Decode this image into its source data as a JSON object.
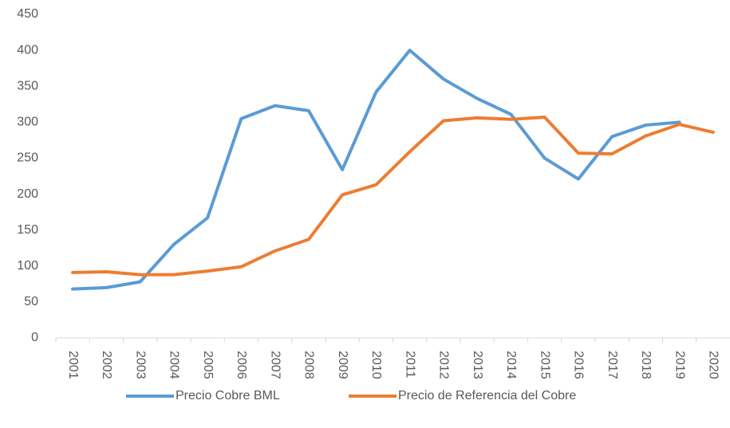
{
  "chart_data": {
    "type": "line",
    "categories": [
      "2001",
      "2002",
      "2003",
      "2004",
      "2005",
      "2006",
      "2007",
      "2008",
      "2009",
      "2010",
      "2011",
      "2012",
      "2013",
      "2014",
      "2015",
      "2016",
      "2017",
      "2018",
      "2019",
      "2020"
    ],
    "series": [
      {
        "name": "Precio Cobre BML",
        "color": "#5b9bd5",
        "values": [
          68,
          70,
          78,
          130,
          167,
          305,
          323,
          316,
          234,
          342,
          400,
          360,
          333,
          311,
          250,
          221,
          280,
          296,
          300,
          null
        ]
      },
      {
        "name": "Precio de Referencia del Cobre",
        "color": "#ed7d31",
        "values": [
          91,
          92,
          88,
          88,
          93,
          99,
          121,
          137,
          199,
          213,
          259,
          302,
          306,
          304,
          307,
          257,
          256,
          281,
          297,
          286
        ]
      }
    ],
    "ylim": [
      0,
      450
    ],
    "yticks": [
      0,
      50,
      100,
      150,
      200,
      250,
      300,
      350,
      400,
      450
    ],
    "grid": false,
    "legend": "bottom"
  }
}
